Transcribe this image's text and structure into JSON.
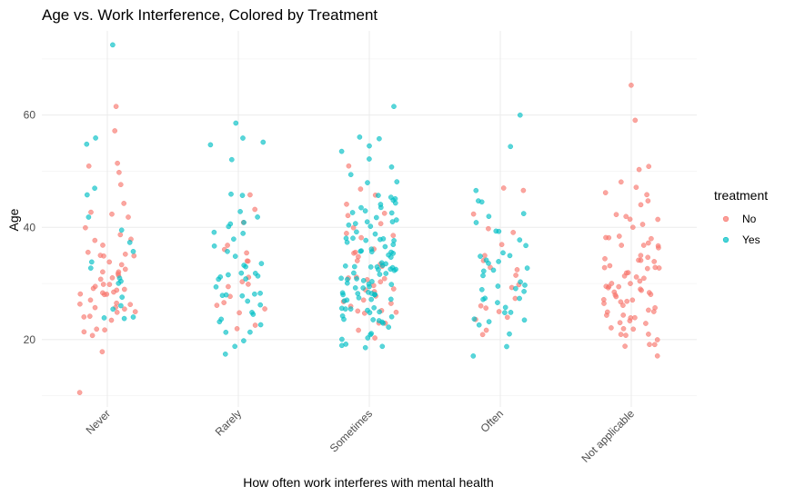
{
  "chart_data": {
    "type": "scatter",
    "subtype": "jitter-strip",
    "title": "Age vs. Work Interference, Colored by Treatment",
    "xlabel": "How often work interferes with mental health",
    "ylabel": "Age",
    "categories": [
      "Never",
      "Rarely",
      "Sometimes",
      "Often",
      "Not applicable"
    ],
    "ylim": [
      8,
      75
    ],
    "yticks": [
      20,
      40,
      60
    ],
    "grid": true,
    "legend": {
      "title": "treatment",
      "position": "right",
      "items": [
        {
          "label": "No",
          "color": "#F8766D"
        },
        {
          "label": "Yes",
          "color": "#00BFC4"
        }
      ]
    },
    "series": [
      {
        "name": "No",
        "color": "#F8766D",
        "points": [
          {
            "category": "Never",
            "ages": [
              62,
              56,
              51,
              50,
              49,
              48,
              45,
              43,
              42,
              41,
              40,
              39,
              38,
              37,
              37,
              36,
              36,
              35,
              35,
              34,
              34,
              33,
              33,
              33,
              32,
              32,
              32,
              31,
              31,
              31,
              30,
              30,
              30,
              29,
              29,
              29,
              28,
              28,
              28,
              27,
              27,
              27,
              26,
              26,
              26,
              25,
              25,
              25,
              24,
              24,
              23,
              23,
              22,
              21,
              21,
              20,
              18,
              11
            ]
          },
          {
            "category": "Rarely",
            "ages": [
              45,
              42,
              40,
              38,
              36,
              35,
              34,
              33,
              32,
              31,
              30,
              29,
              28,
              27,
              26,
              25,
              24,
              23,
              22
            ]
          },
          {
            "category": "Sometimes",
            "ages": [
              50,
              48,
              46,
              45,
              43,
              42,
              41,
              40,
              39,
              38,
              37,
              36,
              35,
              35,
              34,
              34,
              33,
              33,
              32,
              32,
              31,
              31,
              30,
              30,
              29,
              29,
              28,
              28,
              27,
              27,
              26,
              26,
              25,
              25,
              24,
              24,
              23,
              22,
              21,
              20
            ]
          },
          {
            "category": "Often",
            "ages": [
              48,
              46,
              42,
              39,
              38,
              36,
              35,
              34,
              33,
              32,
              31,
              30,
              29,
              28,
              27,
              26,
              25,
              24,
              23,
              22,
              21
            ]
          },
          {
            "category": "Not applicable",
            "ages": [
              65,
              60,
              51,
              50,
              49,
              47,
              46,
              45,
              44,
              43,
              43,
              42,
              41,
              41,
              40,
              40,
              39,
              39,
              38,
              38,
              37,
              37,
              36,
              36,
              36,
              35,
              35,
              35,
              34,
              34,
              34,
              33,
              33,
              33,
              33,
              32,
              32,
              32,
              32,
              31,
              31,
              31,
              31,
              30,
              30,
              30,
              30,
              29,
              29,
              29,
              29,
              28,
              28,
              28,
              28,
              27,
              27,
              27,
              27,
              26,
              26,
              26,
              26,
              25,
              25,
              25,
              24,
              24,
              24,
              23,
              23,
              23,
              22,
              22,
              22,
              21,
              21,
              20,
              20,
              19,
              19,
              18,
              18
            ]
          }
        ]
      },
      {
        "name": "Yes",
        "color": "#00BFC4",
        "points": [
          {
            "category": "Never",
            "ages": [
              72,
              56,
              54,
              48,
              45,
              43,
              40,
              38,
              36,
              34,
              33,
              31,
              30,
              29,
              28,
              27,
              26,
              25,
              24,
              23
            ]
          },
          {
            "category": "Rarely",
            "ages": [
              58,
              57,
              56,
              55,
              53,
              46,
              45,
              44,
              43,
              42,
              41,
              40,
              39,
              38,
              37,
              36,
              35,
              35,
              34,
              34,
              33,
              33,
              32,
              32,
              31,
              31,
              30,
              30,
              29,
              29,
              28,
              28,
              27,
              27,
              26,
              26,
              25,
              25,
              24,
              24,
              23,
              22,
              21,
              20,
              19,
              18
            ]
          },
          {
            "category": "Sometimes",
            "ages": [
              61,
              57,
              55,
              54,
              54,
              51,
              50,
              49,
              48,
              47,
              46,
              46,
              45,
              45,
              44,
              44,
              43,
              43,
              43,
              42,
              42,
              42,
              41,
              41,
              41,
              40,
              40,
              40,
              39,
              39,
              39,
              38,
              38,
              38,
              38,
              37,
              37,
              37,
              37,
              36,
              36,
              36,
              36,
              35,
              35,
              35,
              35,
              34,
              34,
              34,
              34,
              33,
              33,
              33,
              33,
              33,
              32,
              32,
              32,
              32,
              32,
              31,
              31,
              31,
              31,
              31,
              30,
              30,
              30,
              30,
              30,
              29,
              29,
              29,
              29,
              29,
              28,
              28,
              28,
              28,
              27,
              27,
              27,
              27,
              26,
              26,
              26,
              26,
              25,
              25,
              25,
              25,
              24,
              24,
              24,
              24,
              23,
              23,
              23,
              22,
              22,
              22,
              21,
              21,
              20,
              20,
              19,
              18
            ]
          },
          {
            "category": "Often",
            "ages": [
              60,
              55,
              46,
              45,
              44,
              43,
              42,
              41,
              40,
              39,
              38,
              37,
              36,
              35,
              35,
              34,
              34,
              33,
              33,
              32,
              32,
              31,
              31,
              30,
              30,
              29,
              29,
              28,
              28,
              27,
              27,
              26,
              26,
              25,
              25,
              24,
              24,
              23,
              22,
              20,
              19,
              18
            ]
          },
          {
            "category": "Not applicable",
            "ages": []
          }
        ]
      }
    ]
  }
}
